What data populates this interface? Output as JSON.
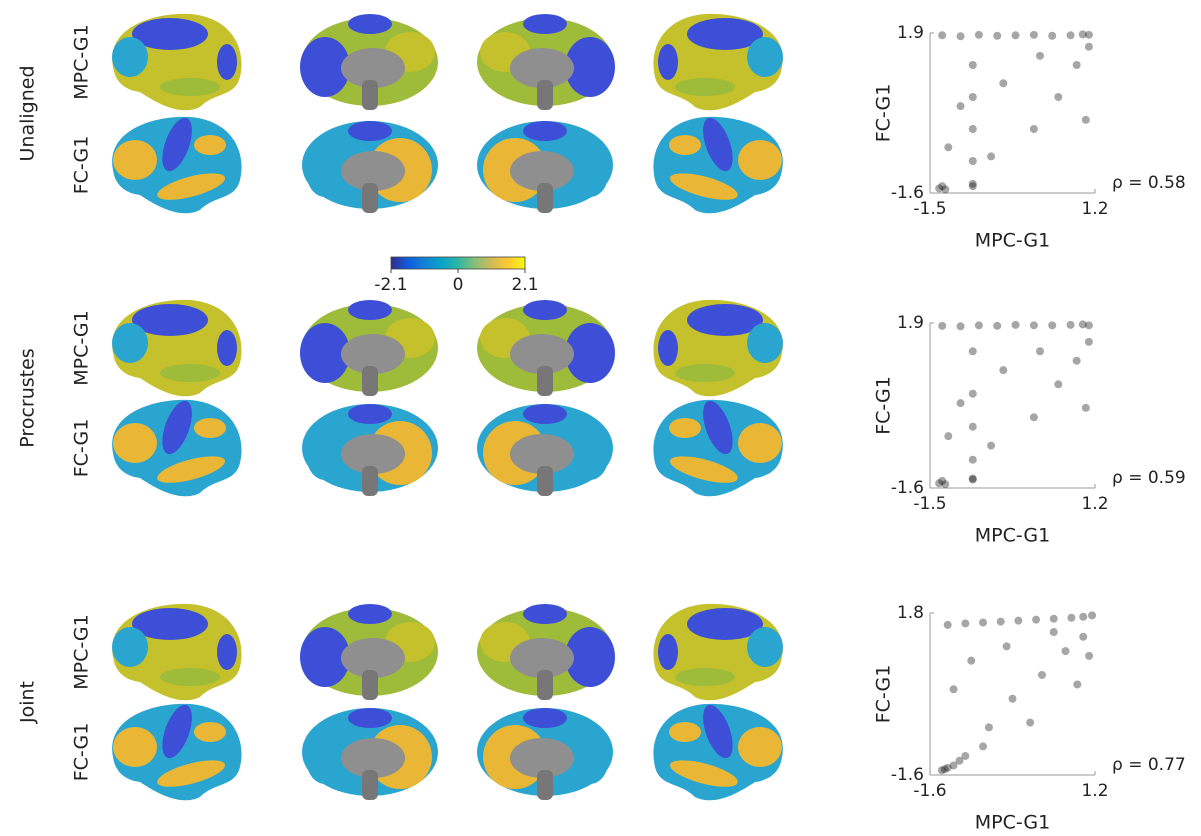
{
  "rows": [
    {
      "label": "Unaligned",
      "maps": [
        "MPC-G1",
        "FC-G1"
      ]
    },
    {
      "label": "Procrustes",
      "maps": [
        "MPC-G1",
        "FC-G1"
      ]
    },
    {
      "label": "Joint",
      "maps": [
        "MPC-G1",
        "FC-G1"
      ]
    }
  ],
  "colorbar": {
    "lim": [
      -2.1,
      2.1
    ],
    "ticks": [
      -2.1,
      0,
      2.1
    ]
  },
  "chart_data": [
    {
      "type": "scatter",
      "x_label": "MPC-G1",
      "y_label": "FC-G1",
      "annotation": "ρ = 0.58",
      "xlim": [
        -1.5,
        1.2
      ],
      "ylim": [
        -1.6,
        1.9
      ],
      "xticks": [
        -1.5,
        1.2
      ],
      "yticks": [
        -1.6,
        1.9
      ],
      "series": [
        {
          "color": "#000000",
          "x": [
            -1.3,
            -1.0,
            -0.7,
            -0.4,
            -0.1,
            0.2,
            0.5,
            0.8,
            1.0,
            1.1,
            -0.8,
            -0.8,
            -0.8,
            -0.8,
            -0.8,
            -1.35,
            -1.3,
            -1.25,
            -0.8,
            -1.0,
            -0.3,
            0.2,
            0.6,
            0.9,
            1.05,
            -0.5,
            0.3,
            -1.2,
            1.1
          ],
          "y": [
            1.85,
            1.83,
            1.86,
            1.84,
            1.85,
            1.86,
            1.84,
            1.85,
            1.87,
            1.86,
            1.2,
            0.5,
            -0.2,
            -0.9,
            -1.4,
            -1.5,
            -1.45,
            -1.52,
            -1.45,
            0.3,
            0.8,
            -0.2,
            0.5,
            1.2,
            0.0,
            -0.8,
            1.4,
            -0.6,
            1.6
          ]
        }
      ]
    },
    {
      "type": "scatter",
      "x_label": "MPC-G1",
      "y_label": "FC-G1",
      "annotation": "ρ = 0.59",
      "xlim": [
        -1.5,
        1.2
      ],
      "ylim": [
        -1.6,
        1.9
      ],
      "xticks": [
        -1.5,
        1.2
      ],
      "yticks": [
        -1.6,
        1.9
      ],
      "series": [
        {
          "color": "#000000",
          "x": [
            -1.3,
            -1.0,
            -0.7,
            -0.4,
            -0.1,
            0.2,
            0.5,
            0.8,
            1.0,
            1.1,
            -0.8,
            -0.8,
            -0.8,
            -0.8,
            -0.8,
            -1.35,
            -1.3,
            -1.25,
            -0.8,
            -1.0,
            -0.3,
            0.2,
            0.6,
            0.9,
            1.05,
            -0.5,
            0.3,
            -1.2,
            1.1
          ],
          "y": [
            1.84,
            1.83,
            1.85,
            1.84,
            1.86,
            1.85,
            1.85,
            1.86,
            1.87,
            1.85,
            1.3,
            0.4,
            -0.3,
            -1.0,
            -1.4,
            -1.5,
            -1.45,
            -1.52,
            -1.42,
            0.2,
            0.9,
            -0.1,
            0.6,
            1.1,
            0.1,
            -0.7,
            1.3,
            -0.5,
            1.5
          ]
        }
      ]
    },
    {
      "type": "scatter",
      "x_label": "MPC-G1",
      "y_label": "FC-G1",
      "annotation": "ρ = 0.77",
      "xlim": [
        -1.6,
        1.2
      ],
      "ylim": [
        -1.6,
        1.8
      ],
      "xticks": [
        -1.6,
        1.2
      ],
      "yticks": [
        -1.6,
        1.8
      ],
      "series": [
        {
          "color": "#000000",
          "x": [
            -1.3,
            -1.0,
            -0.7,
            -0.4,
            -0.1,
            0.2,
            0.5,
            0.8,
            1.0,
            1.15,
            -1.4,
            -1.35,
            -1.3,
            -1.2,
            -1.1,
            -1.0,
            -0.6,
            -0.2,
            0.3,
            0.7,
            1.0,
            -0.9,
            -0.3,
            0.5,
            0.9,
            -1.2,
            0.1,
            1.1,
            -0.7
          ],
          "y": [
            1.55,
            1.58,
            1.6,
            1.62,
            1.64,
            1.66,
            1.68,
            1.7,
            1.72,
            1.75,
            -1.5,
            -1.48,
            -1.45,
            -1.4,
            -1.3,
            -1.2,
            -0.6,
            0.0,
            0.5,
            1.0,
            1.3,
            0.8,
            1.1,
            1.4,
            0.3,
            0.2,
            -0.5,
            0.9,
            -1.0
          ]
        }
      ]
    }
  ]
}
